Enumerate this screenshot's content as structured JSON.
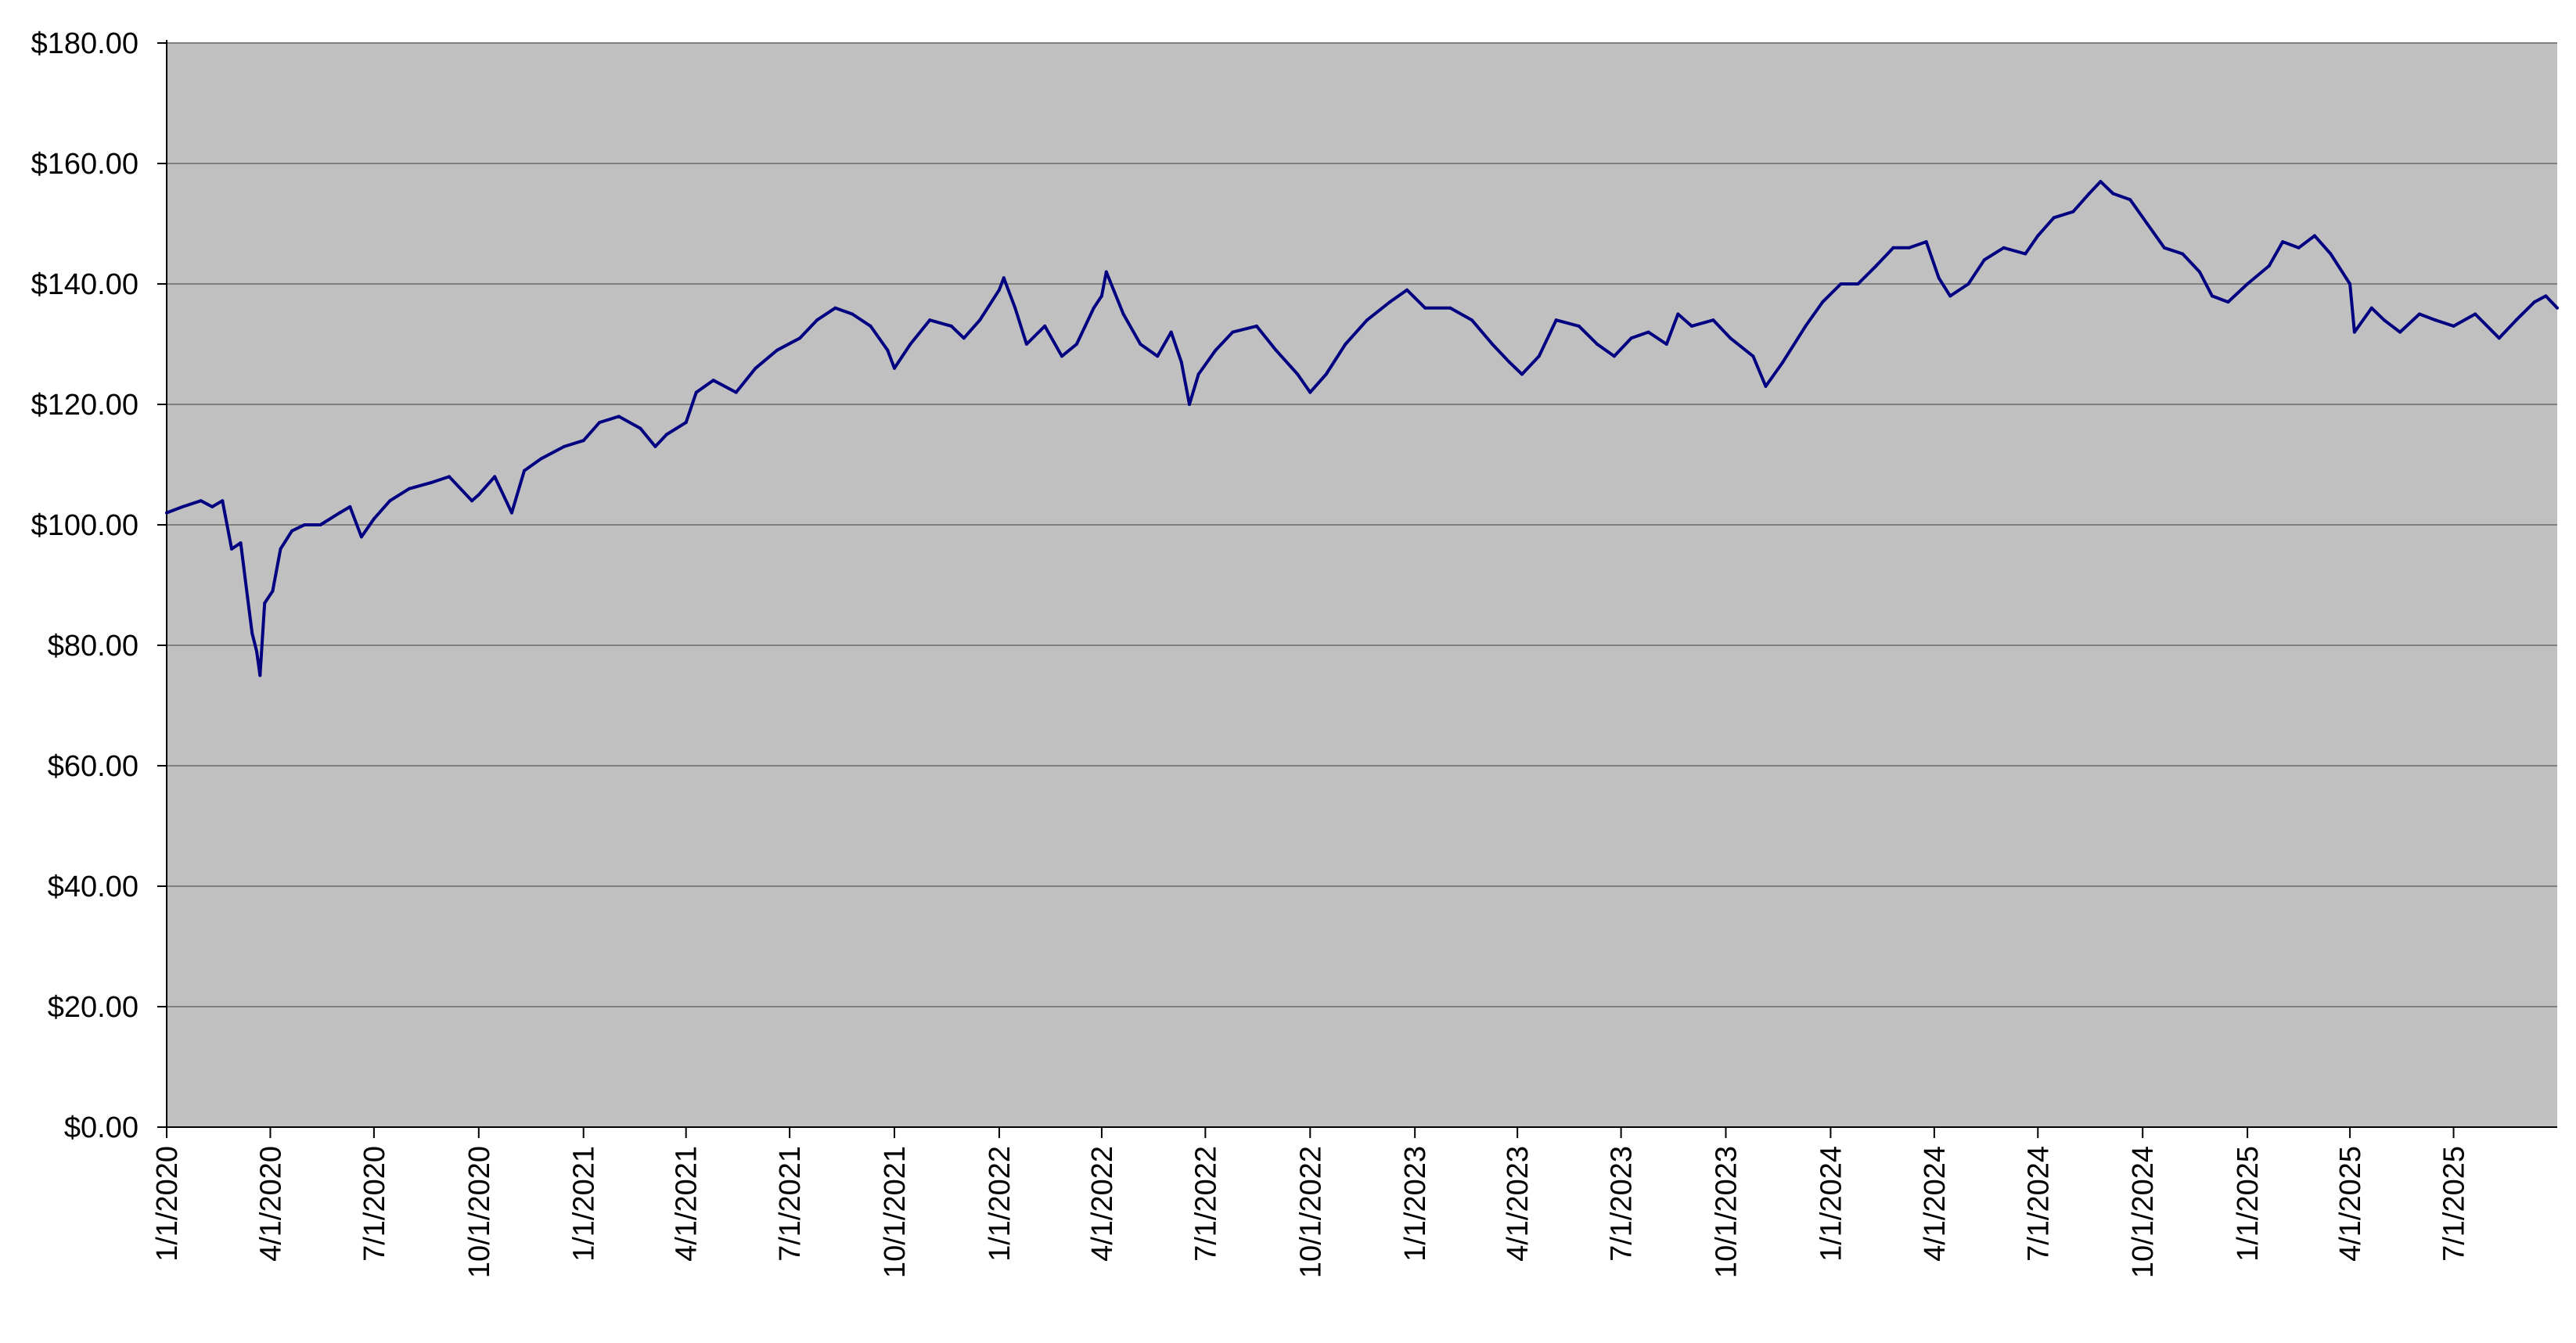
{
  "chart_data": {
    "type": "line",
    "title": "",
    "xlabel": "",
    "ylabel": "",
    "ylim": [
      0,
      180
    ],
    "xlim": [
      "2020-01-01",
      "2025-09-30"
    ],
    "grid": true,
    "colors": {
      "plot_background": "#c0c0c0",
      "gridline": "#808080",
      "line": "#000080"
    },
    "y_ticks": [
      0,
      20,
      40,
      60,
      80,
      100,
      120,
      140,
      160,
      180
    ],
    "y_tick_labels": [
      "$0.00",
      "$20.00",
      "$40.00",
      "$60.00",
      "$80.00",
      "$100.00",
      "$120.00",
      "$140.00",
      "$160.00",
      "$180.00"
    ],
    "x_ticks": [
      "2020-01-01",
      "2020-04-01",
      "2020-07-01",
      "2020-10-01",
      "2021-01-01",
      "2021-04-01",
      "2021-07-01",
      "2021-10-01",
      "2022-01-01",
      "2022-04-01",
      "2022-07-01",
      "2022-10-01",
      "2023-01-01",
      "2023-04-01",
      "2023-07-01",
      "2023-10-01",
      "2024-01-01",
      "2024-04-01",
      "2024-07-01",
      "2024-10-01",
      "2025-01-01",
      "2025-04-01",
      "2025-07-01"
    ],
    "x_tick_labels": [
      "1/1/2020",
      "4/1/2020",
      "7/1/2020",
      "10/1/2020",
      "1/1/2021",
      "4/1/2021",
      "7/1/2021",
      "10/1/2021",
      "1/1/2022",
      "4/1/2022",
      "7/1/2022",
      "10/1/2022",
      "1/1/2023",
      "4/1/2023",
      "7/1/2023",
      "10/1/2023",
      "1/1/2024",
      "4/1/2024",
      "7/1/2024",
      "10/1/2024",
      "1/1/2025",
      "4/1/2025",
      "7/1/2025"
    ],
    "series": [
      {
        "points": [
          [
            "2020-01-01",
            102
          ],
          [
            "2020-01-15",
            103
          ],
          [
            "2020-01-31",
            104
          ],
          [
            "2020-02-10",
            103
          ],
          [
            "2020-02-19",
            104
          ],
          [
            "2020-02-27",
            96
          ],
          [
            "2020-03-06",
            97
          ],
          [
            "2020-03-12",
            88
          ],
          [
            "2020-03-16",
            82
          ],
          [
            "2020-03-20",
            79
          ],
          [
            "2020-03-23",
            75
          ],
          [
            "2020-03-27",
            87
          ],
          [
            "2020-04-03",
            89
          ],
          [
            "2020-04-10",
            96
          ],
          [
            "2020-04-20",
            99
          ],
          [
            "2020-05-01",
            100
          ],
          [
            "2020-05-15",
            100
          ],
          [
            "2020-06-01",
            102
          ],
          [
            "2020-06-10",
            103
          ],
          [
            "2020-06-20",
            98
          ],
          [
            "2020-07-01",
            101
          ],
          [
            "2020-07-15",
            104
          ],
          [
            "2020-08-01",
            106
          ],
          [
            "2020-08-20",
            107
          ],
          [
            "2020-09-05",
            108
          ],
          [
            "2020-09-25",
            104
          ],
          [
            "2020-10-01",
            105
          ],
          [
            "2020-10-15",
            108
          ],
          [
            "2020-10-30",
            102
          ],
          [
            "2020-11-10",
            109
          ],
          [
            "2020-11-25",
            111
          ],
          [
            "2020-12-15",
            113
          ],
          [
            "2021-01-01",
            114
          ],
          [
            "2021-01-15",
            117
          ],
          [
            "2021-02-01",
            118
          ],
          [
            "2021-02-20",
            116
          ],
          [
            "2021-03-05",
            113
          ],
          [
            "2021-03-15",
            115
          ],
          [
            "2021-04-01",
            117
          ],
          [
            "2021-04-10",
            122
          ],
          [
            "2021-04-25",
            124
          ],
          [
            "2021-05-15",
            122
          ],
          [
            "2021-06-01",
            126
          ],
          [
            "2021-06-20",
            129
          ],
          [
            "2021-07-10",
            131
          ],
          [
            "2021-07-25",
            134
          ],
          [
            "2021-08-10",
            136
          ],
          [
            "2021-08-25",
            135
          ],
          [
            "2021-09-10",
            133
          ],
          [
            "2021-09-25",
            129
          ],
          [
            "2021-10-01",
            126
          ],
          [
            "2021-10-15",
            130
          ],
          [
            "2021-11-01",
            134
          ],
          [
            "2021-11-20",
            133
          ],
          [
            "2021-12-01",
            131
          ],
          [
            "2021-12-15",
            134
          ],
          [
            "2022-01-01",
            139
          ],
          [
            "2022-01-05",
            141
          ],
          [
            "2022-01-15",
            136
          ],
          [
            "2022-01-25",
            130
          ],
          [
            "2022-02-10",
            133
          ],
          [
            "2022-02-25",
            128
          ],
          [
            "2022-03-10",
            130
          ],
          [
            "2022-03-25",
            136
          ],
          [
            "2022-04-01",
            138
          ],
          [
            "2022-04-05",
            142
          ],
          [
            "2022-04-20",
            135
          ],
          [
            "2022-05-05",
            130
          ],
          [
            "2022-05-20",
            128
          ],
          [
            "2022-06-01",
            132
          ],
          [
            "2022-06-10",
            127
          ],
          [
            "2022-06-17",
            120
          ],
          [
            "2022-06-25",
            125
          ],
          [
            "2022-07-10",
            129
          ],
          [
            "2022-07-25",
            132
          ],
          [
            "2022-08-15",
            133
          ],
          [
            "2022-09-01",
            129
          ],
          [
            "2022-09-20",
            125
          ],
          [
            "2022-10-01",
            122
          ],
          [
            "2022-10-15",
            125
          ],
          [
            "2022-11-01",
            130
          ],
          [
            "2022-11-20",
            134
          ],
          [
            "2022-12-10",
            137
          ],
          [
            "2022-12-25",
            139
          ],
          [
            "2023-01-10",
            136
          ],
          [
            "2023-02-01",
            136
          ],
          [
            "2023-02-20",
            134
          ],
          [
            "2023-03-10",
            130
          ],
          [
            "2023-03-25",
            127
          ],
          [
            "2023-04-05",
            125
          ],
          [
            "2023-04-20",
            128
          ],
          [
            "2023-05-05",
            134
          ],
          [
            "2023-05-25",
            133
          ],
          [
            "2023-06-10",
            130
          ],
          [
            "2023-06-25",
            128
          ],
          [
            "2023-07-10",
            131
          ],
          [
            "2023-07-25",
            132
          ],
          [
            "2023-08-10",
            130
          ],
          [
            "2023-08-20",
            135
          ],
          [
            "2023-09-01",
            133
          ],
          [
            "2023-09-20",
            134
          ],
          [
            "2023-10-05",
            131
          ],
          [
            "2023-10-25",
            128
          ],
          [
            "2023-11-05",
            123
          ],
          [
            "2023-11-20",
            127
          ],
          [
            "2023-12-10",
            133
          ],
          [
            "2023-12-25",
            137
          ],
          [
            "2024-01-10",
            140
          ],
          [
            "2024-01-25",
            140
          ],
          [
            "2024-02-10",
            143
          ],
          [
            "2024-02-25",
            146
          ],
          [
            "2024-03-10",
            146
          ],
          [
            "2024-03-25",
            147
          ],
          [
            "2024-04-05",
            141
          ],
          [
            "2024-04-15",
            138
          ],
          [
            "2024-05-01",
            140
          ],
          [
            "2024-05-15",
            144
          ],
          [
            "2024-06-01",
            146
          ],
          [
            "2024-06-20",
            145
          ],
          [
            "2024-07-01",
            148
          ],
          [
            "2024-07-15",
            151
          ],
          [
            "2024-08-01",
            152
          ],
          [
            "2024-08-15",
            155
          ],
          [
            "2024-08-25",
            157
          ],
          [
            "2024-09-05",
            155
          ],
          [
            "2024-09-20",
            154
          ],
          [
            "2024-10-05",
            150
          ],
          [
            "2024-10-20",
            146
          ],
          [
            "2024-11-05",
            145
          ],
          [
            "2024-11-20",
            142
          ],
          [
            "2024-12-01",
            138
          ],
          [
            "2024-12-15",
            137
          ],
          [
            "2025-01-01",
            140
          ],
          [
            "2025-01-20",
            143
          ],
          [
            "2025-02-01",
            147
          ],
          [
            "2025-02-15",
            146
          ],
          [
            "2025-03-01",
            148
          ],
          [
            "2025-03-15",
            145
          ],
          [
            "2025-04-01",
            140
          ],
          [
            "2025-04-05",
            132
          ],
          [
            "2025-04-20",
            136
          ],
          [
            "2025-05-01",
            134
          ],
          [
            "2025-05-15",
            132
          ],
          [
            "2025-06-01",
            135
          ],
          [
            "2025-06-15",
            134
          ],
          [
            "2025-07-01",
            133
          ],
          [
            "2025-07-20",
            135
          ],
          [
            "2025-08-10",
            131
          ],
          [
            "2025-08-25",
            134
          ],
          [
            "2025-09-10",
            137
          ],
          [
            "2025-09-20",
            138
          ],
          [
            "2025-09-30",
            136
          ]
        ]
      }
    ]
  }
}
